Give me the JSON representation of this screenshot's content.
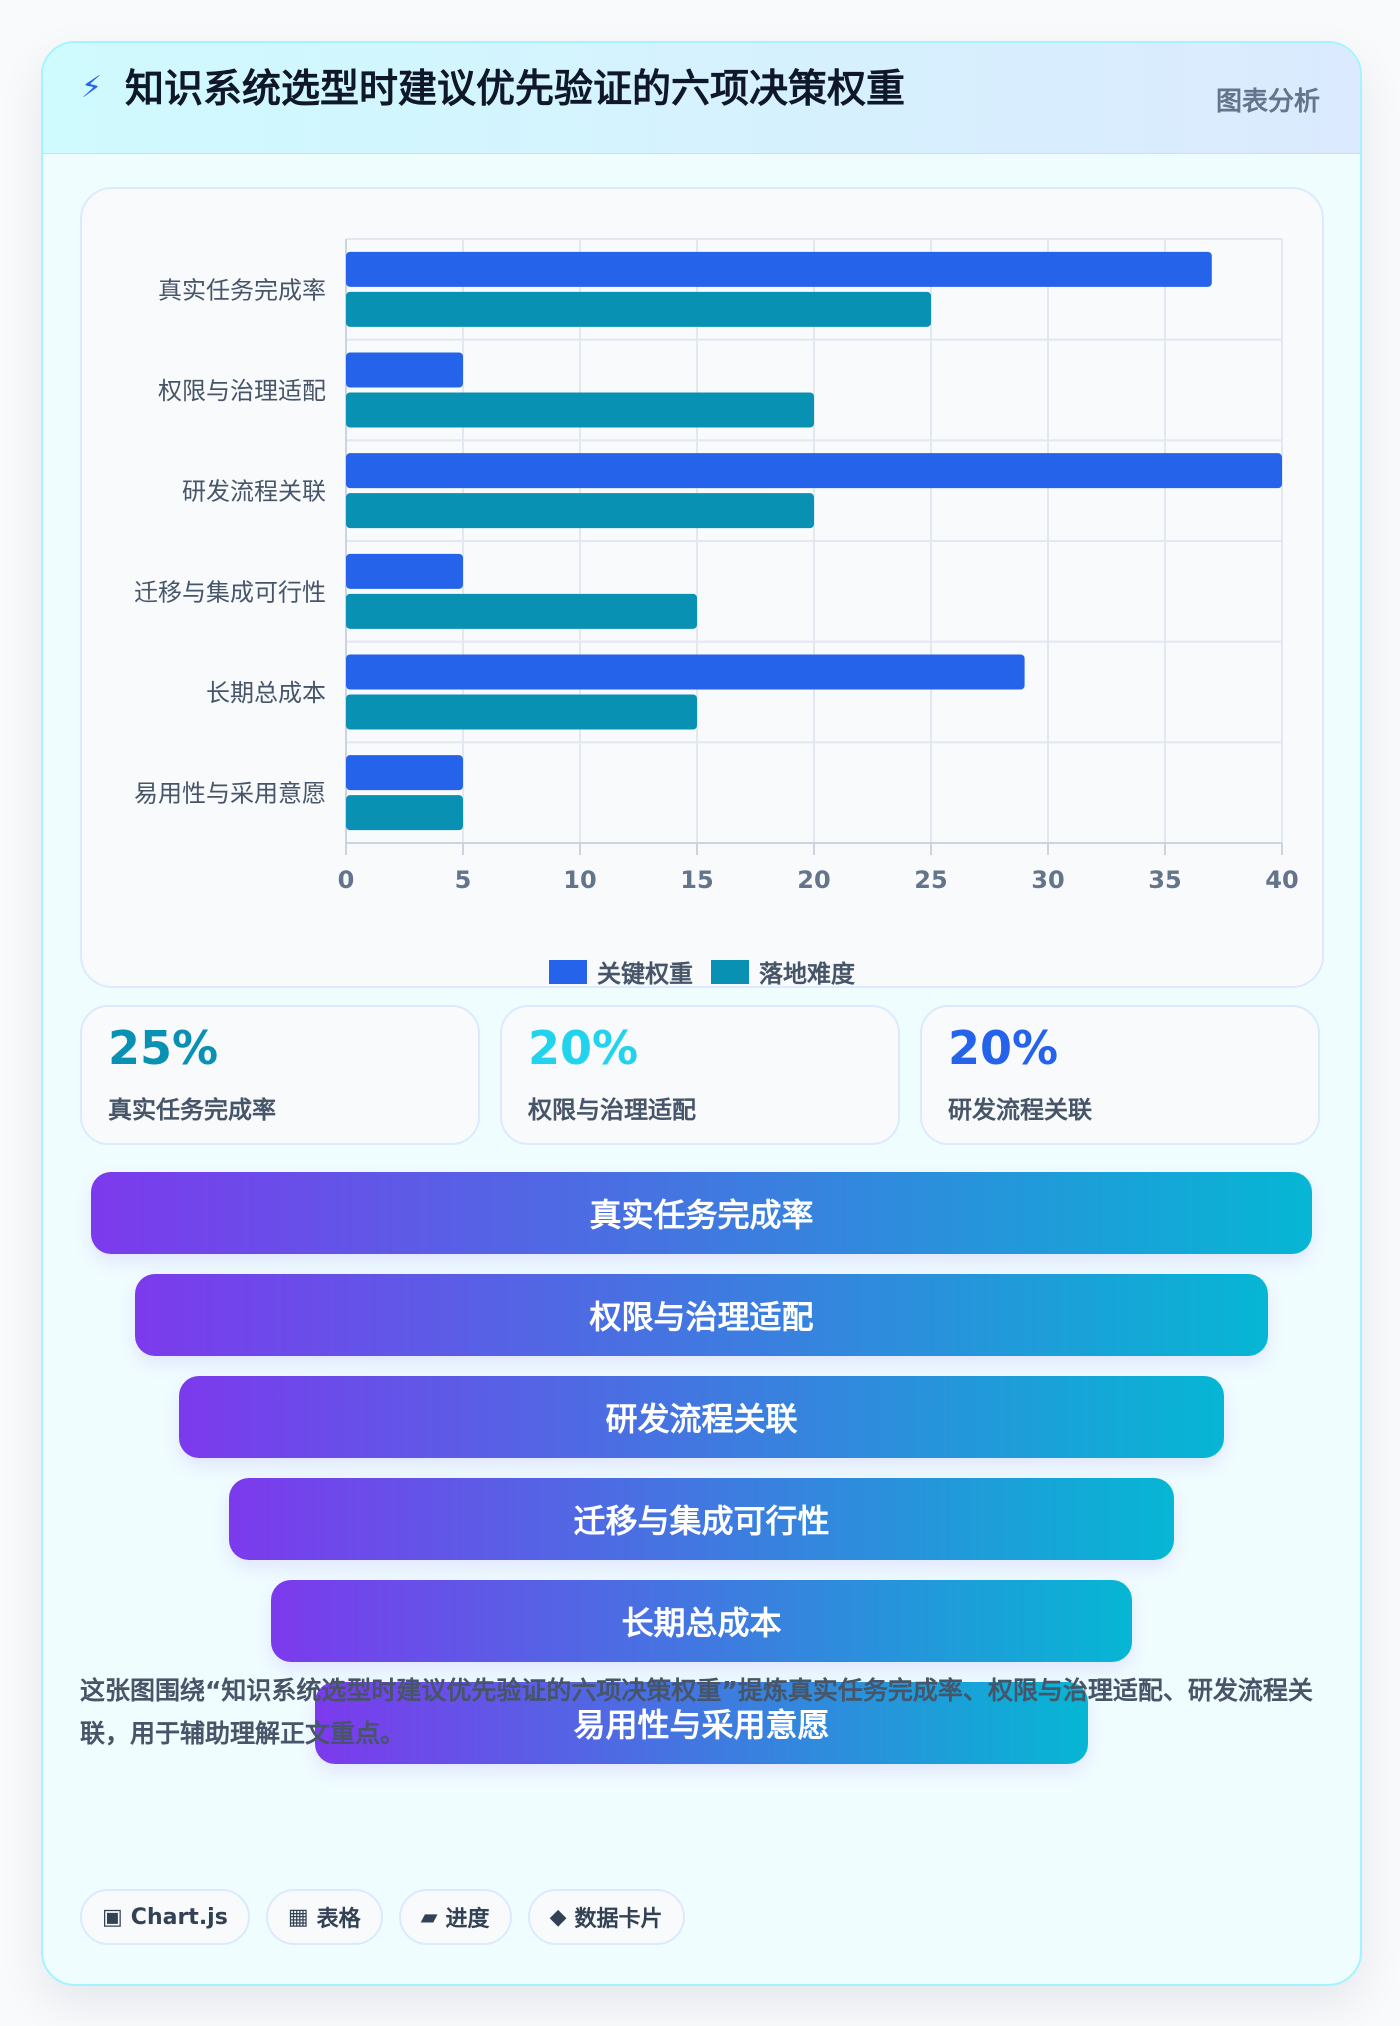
{
  "header": {
    "icon": "lightning-bolt-icon",
    "title": "知识系统选型时建议优先验证的六项决策权重",
    "tag": "图表分析"
  },
  "chart_data": {
    "type": "bar",
    "orientation": "horizontal",
    "categories": [
      "真实任务完成率",
      "权限与治理适配",
      "研发流程关联",
      "迁移与集成可行性",
      "长期总成本",
      "易用性与采用意愿"
    ],
    "series": [
      {
        "name": "关键权重",
        "values": [
          37,
          5,
          40,
          5,
          29,
          5
        ],
        "color": "#2563eb"
      },
      {
        "name": "落地难度",
        "values": [
          25,
          20,
          20,
          15,
          15,
          5
        ],
        "color": "#0891b2"
      }
    ],
    "xlim": [
      0,
      40
    ],
    "x_ticks": [
      "0",
      "5",
      "10",
      "15",
      "20",
      "25",
      "30",
      "35",
      "40"
    ],
    "grid": true,
    "legend_position": "bottom"
  },
  "stats": [
    {
      "value": "25%",
      "label": "真实任务完成率",
      "color": "#0891b2"
    },
    {
      "value": "20%",
      "label": "权限与治理适配",
      "color": "#22d3ee"
    },
    {
      "value": "20%",
      "label": "研发流程关联",
      "color": "#2563eb"
    }
  ],
  "funnel": [
    {
      "label": "真实任务完成率"
    },
    {
      "label": "权限与治理适配"
    },
    {
      "label": "研发流程关联"
    },
    {
      "label": "迁移与集成可行性"
    },
    {
      "label": "长期总成本"
    },
    {
      "label": "易用性与采用意愿"
    }
  ],
  "description": "这张图围绕“知识系统选型时建议优先验证的六项决策权重”提炼真实任务完成率、权限与治理适配、研发流程关联，用于辅助理解正文重点。",
  "tags": [
    {
      "icon": "▣",
      "icon_name": "chart-icon",
      "label": "Chart.js"
    },
    {
      "icon": "▦",
      "icon_name": "table-icon",
      "label": "表格"
    },
    {
      "icon": "▰",
      "icon_name": "progress-icon",
      "label": "进度"
    },
    {
      "icon": "◆",
      "icon_name": "diamond-icon",
      "label": "数据卡片"
    }
  ]
}
